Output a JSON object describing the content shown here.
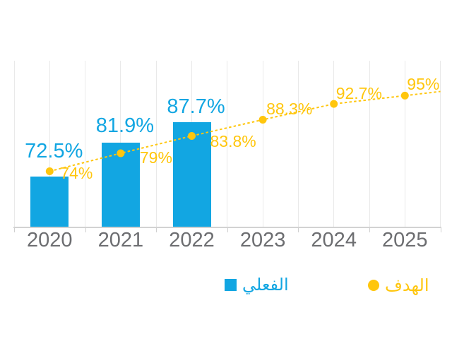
{
  "chart_data": {
    "type": "bar",
    "title": "",
    "categories": [
      "2020",
      "2021",
      "2022",
      "2023",
      "2024",
      "2025"
    ],
    "series": [
      {
        "name": "الفعلي",
        "type": "bar",
        "color": "#12a6e2",
        "values": [
          72.5,
          81.9,
          87.7,
          null,
          null,
          null
        ],
        "data_labels": [
          "72.5%",
          "81.9%",
          "87.7%",
          "",
          "",
          ""
        ]
      },
      {
        "name": "الهدف",
        "type": "line",
        "line_style": "dotted",
        "marker": "circle",
        "color": "#ffc60d",
        "values": [
          74,
          79,
          83.8,
          88.3,
          92.7,
          95
        ],
        "data_labels": [
          "74%",
          "79%",
          "83.8%",
          "88.3%",
          "92.7%",
          "95%"
        ]
      }
    ],
    "xlabel": "",
    "ylabel": "",
    "y_axis_labels_visible": false,
    "ylim": [
      58.6,
      104.7
    ],
    "grid": "vertical-only",
    "legend_position": "bottom"
  },
  "legend": {
    "actual": {
      "label": "الفعلي",
      "marker": "square",
      "color": "#12a6e2"
    },
    "target": {
      "label": "الهدف",
      "marker": "circle",
      "color": "#ffc60d"
    }
  },
  "colors": {
    "bar_blue": "#12a6e2",
    "line_yellow": "#ffc60d",
    "gridline_gray": "#e9e9e9",
    "axis_gray": "#d2d2d2",
    "year_label_gray": "#6d6e71",
    "background": "#ffffff"
  }
}
